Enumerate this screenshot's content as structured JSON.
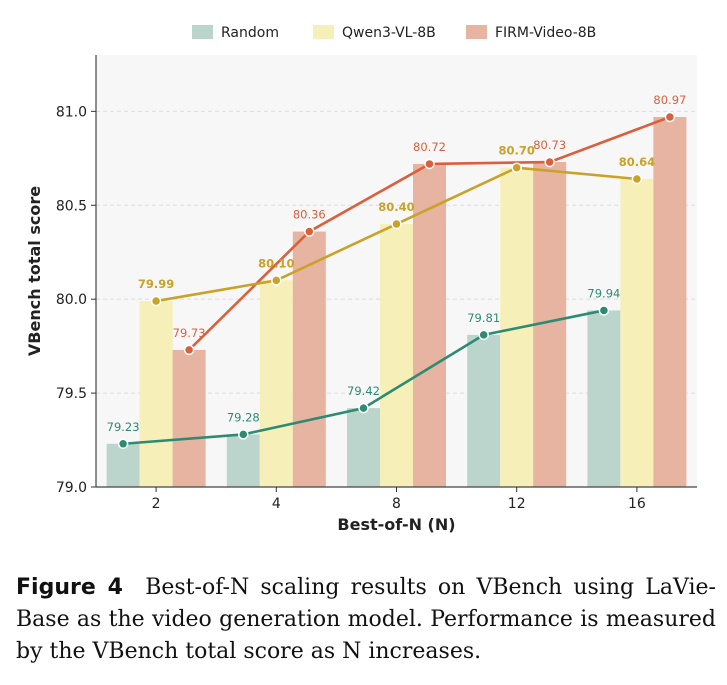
{
  "caption": {
    "label": "Figure 4",
    "text": "Best-of-N scaling results on VBench using LaVie-Base as the video generation model. Performance is measured by the VBench total score as N increases."
  },
  "chart_data": {
    "type": "bar",
    "xlabel": "Best-of-N  (N)",
    "ylabel": "VBench total score",
    "categories": [
      "2",
      "4",
      "8",
      "12",
      "16"
    ],
    "ylim": [
      79.0,
      81.3
    ],
    "yticks": [
      "79.0",
      "79.5",
      "80.0",
      "80.5",
      "81.0"
    ],
    "grid": "horizontal dashed",
    "legend_position": "top",
    "series": [
      {
        "name": "Random",
        "values": [
          79.23,
          79.28,
          79.42,
          79.81,
          79.94
        ],
        "bar_color": "#bcd5cc",
        "line_color": "#2e8b73",
        "labels": [
          "79.23",
          "79.28",
          "79.42",
          "79.81",
          "79.94"
        ],
        "label_bold": false
      },
      {
        "name": "Qwen3-VL-8B",
        "values": [
          79.99,
          80.1,
          80.4,
          80.7,
          80.64
        ],
        "bar_color": "#f6f0b8",
        "line_color": "#c9a227",
        "labels": [
          "79.99",
          "80.10",
          "80.40",
          "80.70",
          "80.64"
        ],
        "label_bold": true
      },
      {
        "name": "FIRM-Video-8B",
        "values": [
          79.73,
          80.36,
          80.72,
          80.73,
          80.97
        ],
        "bar_color": "#e6b4a0",
        "line_color": "#d9603d",
        "labels": [
          "79.73",
          "80.36",
          "80.72",
          "80.73",
          "80.97"
        ],
        "label_bold": false
      }
    ]
  }
}
